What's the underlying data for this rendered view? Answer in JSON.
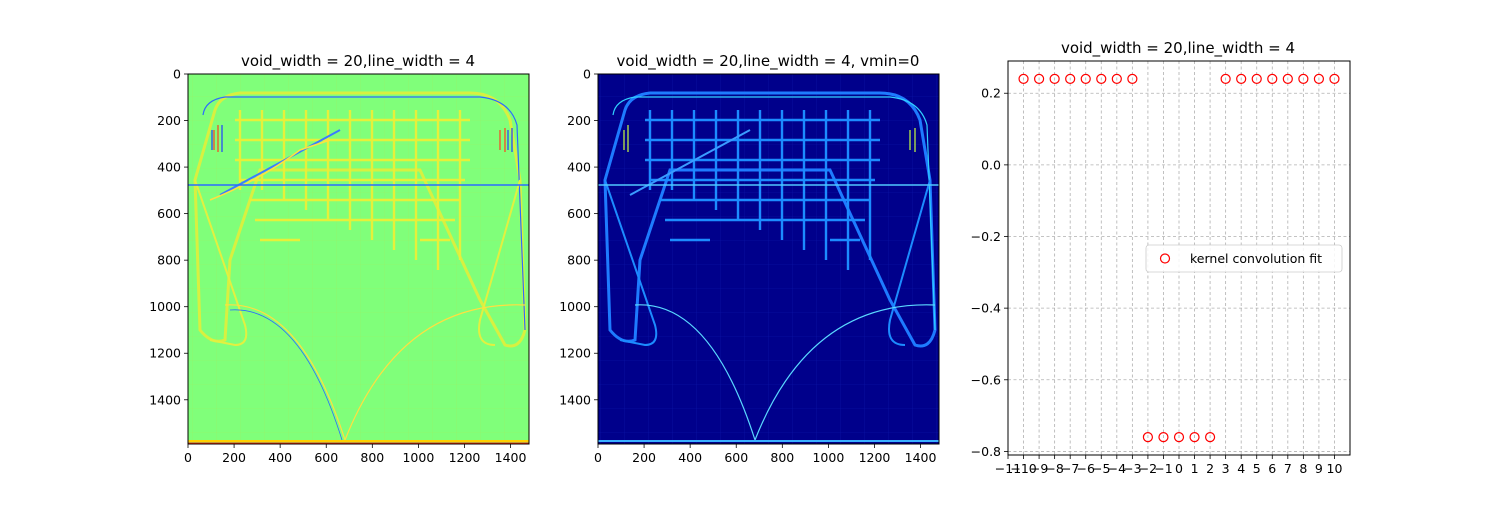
{
  "chart_data": [
    {
      "type": "heatmap",
      "title": "void_width = 20,line_width = 4",
      "xticks": [
        "0",
        "200",
        "400",
        "600",
        "800",
        "1000",
        "1200",
        "1400"
      ],
      "yticks": [
        "0",
        "200",
        "400",
        "600",
        "800",
        "1000",
        "1200",
        "1400"
      ],
      "xlim": [
        0,
        1480
      ],
      "ylim": [
        1590,
        0
      ],
      "colormap": "jet",
      "background_color": "#80ff7a",
      "description_hidden": true
    },
    {
      "type": "heatmap",
      "title": "void_width = 20,line_width = 4, vmin=0",
      "xticks": [
        "0",
        "200",
        "400",
        "600",
        "800",
        "1000",
        "1200",
        "1400"
      ],
      "yticks": [
        "0",
        "200",
        "400",
        "600",
        "800",
        "1000",
        "1200",
        "1400"
      ],
      "xlim": [
        0,
        1480
      ],
      "ylim": [
        1590,
        0
      ],
      "colormap": "jet",
      "background_color": "#00008b"
    },
    {
      "type": "scatter",
      "title": "void_width = 20,line_width = 4",
      "series": [
        {
          "name": "kernel convolution fit",
          "marker": "open-circle",
          "color": "#ff0000",
          "x": [
            -10,
            -9,
            -8,
            -7,
            -6,
            -5,
            -4,
            -3,
            -2,
            -1,
            0,
            1,
            2,
            3,
            4,
            5,
            6,
            7,
            8,
            9,
            10
          ],
          "y": [
            0.24,
            0.24,
            0.24,
            0.24,
            0.24,
            0.24,
            0.24,
            0.24,
            -0.76,
            -0.76,
            -0.76,
            -0.76,
            -0.76,
            0.24,
            0.24,
            0.24,
            0.24,
            0.24,
            0.24,
            0.24,
            0.24
          ]
        }
      ],
      "xticks": [
        "−11",
        "−10",
        "−9",
        "−8",
        "−7",
        "−6",
        "−5",
        "−4",
        "−3",
        "−2",
        "−1",
        "0",
        "1",
        "2",
        "3",
        "4",
        "5",
        "6",
        "7",
        "8",
        "9",
        "10"
      ],
      "yticks": [
        "0.2",
        "0.0",
        "−0.2",
        "−0.4",
        "−0.6",
        "−0.8"
      ],
      "xlim": [
        -11,
        11
      ],
      "ylim": [
        -0.81,
        0.29
      ],
      "grid": true,
      "legend_position": "center-right"
    }
  ]
}
